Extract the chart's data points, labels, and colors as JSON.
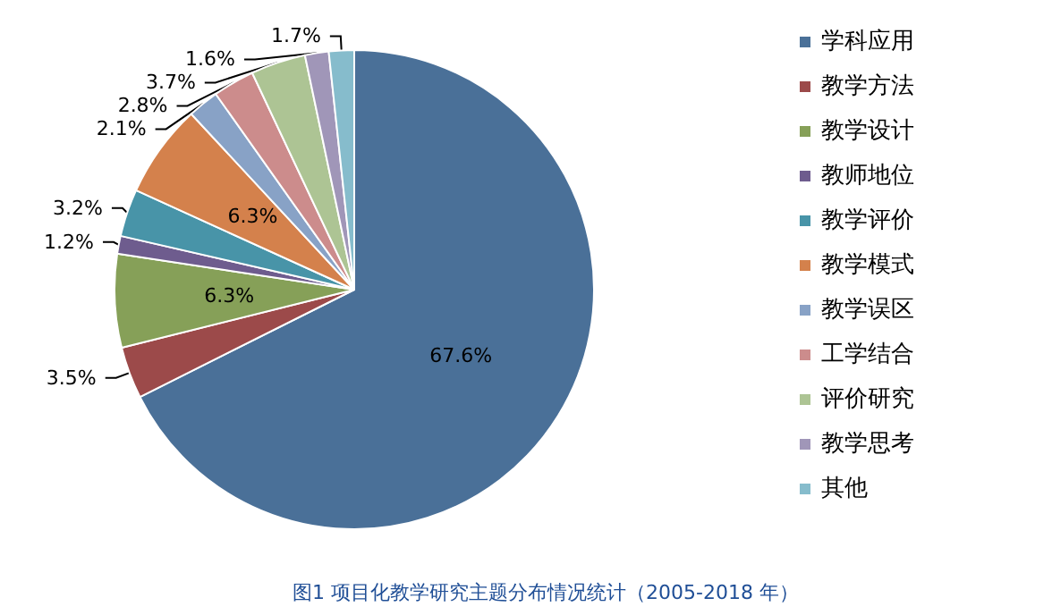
{
  "chart_data": {
    "type": "pie",
    "title": "图1 项目化教学研究主题分布情况统计（2005-2018 年）",
    "categories": [
      "学科应用",
      "教学方法",
      "教学设计",
      "教师地位",
      "教学评价",
      "教学模式",
      "教学误区",
      "工学结合",
      "评价研究",
      "教学思考",
      "其他"
    ],
    "values": [
      67.6,
      3.5,
      6.3,
      1.2,
      3.2,
      6.3,
      2.1,
      2.8,
      3.7,
      1.6,
      1.7
    ],
    "colors": [
      "#4a7098",
      "#9c4a4a",
      "#86a058",
      "#6e5c8e",
      "#4894a8",
      "#d4814c",
      "#88a2c6",
      "#cc8c8c",
      "#adc494",
      "#a096b8",
      "#86bccc"
    ],
    "value_labels": [
      "67.6%",
      "3.5%",
      "6.3%",
      "1.2%",
      "3.2%",
      "6.3%",
      "2.1%",
      "2.8%",
      "3.7%",
      "1.6%",
      "1.7%"
    ],
    "legend": "right"
  }
}
